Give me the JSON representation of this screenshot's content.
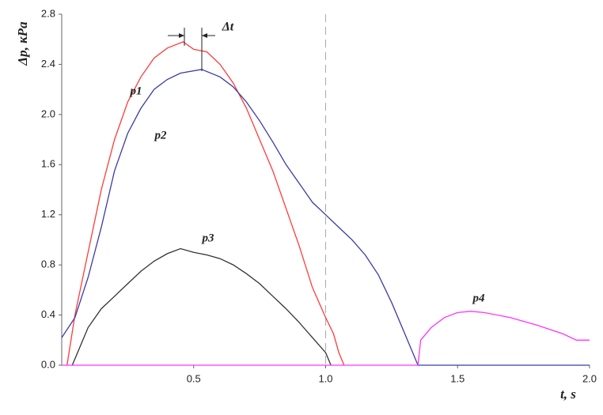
{
  "chart_data": {
    "type": "line",
    "y_label": "Δp, кPa",
    "x_label": "t, s",
    "delta_label": "Δt",
    "xlim": [
      0,
      2
    ],
    "ylim": [
      0,
      2.8
    ],
    "xticks": [
      0.5,
      {
        "value": 1,
        "label": "1.0"
      },
      1.5,
      {
        "value": 2,
        "label": "2.0"
      }
    ],
    "yticks": [
      {
        "value": 0,
        "label": "0.0"
      },
      0.4,
      0.8,
      1.2,
      1.6,
      {
        "value": 2,
        "label": "2.0"
      },
      2.4,
      2.8
    ],
    "vline": 1,
    "series": [
      {
        "name": "p1",
        "color": "#ff3b3b",
        "x": [
          0.02,
          0.05,
          0.1,
          0.15,
          0.2,
          0.25,
          0.3,
          0.35,
          0.4,
          0.46,
          0.5,
          0.55,
          0.6,
          0.65,
          0.7,
          0.75,
          0.8,
          0.85,
          0.9,
          0.95,
          1.0,
          1.03,
          1.05,
          1.07
        ],
        "values": [
          0,
          0.4,
          0.9,
          1.4,
          1.8,
          2.1,
          2.3,
          2.45,
          2.53,
          2.58,
          2.52,
          2.5,
          2.4,
          2.25,
          2.05,
          1.8,
          1.55,
          1.25,
          0.95,
          0.62,
          0.38,
          0.25,
          0.1,
          0
        ]
      },
      {
        "name": "p2",
        "color": "#3a3aa8",
        "x": [
          0,
          0.05,
          0.1,
          0.15,
          0.2,
          0.25,
          0.3,
          0.35,
          0.4,
          0.45,
          0.53,
          0.6,
          0.65,
          0.7,
          0.75,
          0.8,
          0.85,
          0.9,
          0.95,
          1.0,
          1.05,
          1.1,
          1.15,
          1.2,
          1.25,
          1.3,
          1.35,
          2.0
        ],
        "values": [
          0.22,
          0.38,
          0.7,
          1.1,
          1.55,
          1.85,
          2.05,
          2.2,
          2.28,
          2.33,
          2.36,
          2.3,
          2.22,
          2.1,
          1.95,
          1.78,
          1.6,
          1.45,
          1.3,
          1.2,
          1.1,
          1.0,
          0.88,
          0.72,
          0.5,
          0.25,
          0,
          0
        ]
      },
      {
        "name": "p3",
        "color": "#333333",
        "x": [
          0.04,
          0.06,
          0.1,
          0.15,
          0.2,
          0.25,
          0.3,
          0.35,
          0.4,
          0.45,
          0.5,
          0.55,
          0.6,
          0.65,
          0.7,
          0.75,
          0.8,
          0.85,
          0.9,
          0.95,
          1.0,
          1.02
        ],
        "values": [
          0,
          0.1,
          0.3,
          0.45,
          0.55,
          0.65,
          0.75,
          0.83,
          0.89,
          0.93,
          0.9,
          0.88,
          0.85,
          0.8,
          0.73,
          0.65,
          0.55,
          0.45,
          0.34,
          0.22,
          0.1,
          0
        ]
      },
      {
        "name": "p4",
        "color": "#ff33ff",
        "x": [
          0,
          1.35,
          1.36,
          1.4,
          1.45,
          1.5,
          1.55,
          1.6,
          1.7,
          1.8,
          1.9,
          1.95,
          2.0
        ],
        "values": [
          0,
          0,
          0.2,
          0.3,
          0.38,
          0.42,
          0.43,
          0.42,
          0.38,
          0.32,
          0.25,
          0.2,
          0.2
        ]
      }
    ]
  }
}
